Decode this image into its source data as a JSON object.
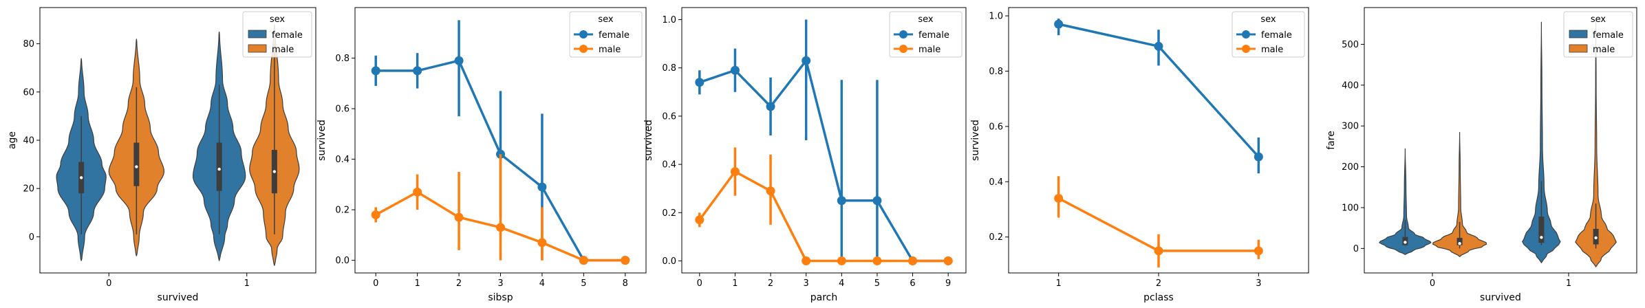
{
  "colors": {
    "female": "#1f77b4",
    "male": "#ff7f0e",
    "violin_female": "#3274a1",
    "violin_male": "#e1812c"
  },
  "chart_data": [
    {
      "type": "violin",
      "xlabel": "survived",
      "ylabel": "age",
      "categories": [
        "0",
        "1"
      ],
      "ylim": [
        -15,
        95
      ],
      "yticks": [
        0,
        20,
        40,
        60,
        80
      ],
      "legend": {
        "title": "sex",
        "placement": "top-right",
        "entries": [
          "female",
          "male"
        ]
      },
      "series": [
        {
          "name": "female",
          "violins": [
            {
              "lo": -10,
              "hi": 74,
              "q1": 18,
              "median": 24.5,
              "q3": 31,
              "wlo": 1,
              "whi": 50,
              "density": [
                [
                  -10,
                  0.02
                ],
                [
                  0,
                  0.12
                ],
                [
                  10,
                  0.45
                ],
                [
                  20,
                  0.85
                ],
                [
                  25,
                  0.9
                ],
                [
                  30,
                  0.75
                ],
                [
                  40,
                  0.45
                ],
                [
                  50,
                  0.25
                ],
                [
                  60,
                  0.1
                ],
                [
                  74,
                  0.01
                ]
              ]
            },
            {
              "lo": -10,
              "hi": 85,
              "q1": 19,
              "median": 28,
              "q3": 39,
              "wlo": 1,
              "whi": 63,
              "density": [
                [
                  -10,
                  0.02
                ],
                [
                  0,
                  0.2
                ],
                [
                  5,
                  0.3
                ],
                [
                  15,
                  0.55
                ],
                [
                  25,
                  0.95
                ],
                [
                  35,
                  0.8
                ],
                [
                  45,
                  0.5
                ],
                [
                  55,
                  0.3
                ],
                [
                  65,
                  0.12
                ],
                [
                  85,
                  0.01
                ]
              ]
            }
          ]
        },
        {
          "name": "male",
          "violins": [
            {
              "lo": -8,
              "hi": 82,
              "q1": 21,
              "median": 29,
              "q3": 39,
              "wlo": 1,
              "whi": 62,
              "density": [
                [
                  -8,
                  0.02
                ],
                [
                  0,
                  0.1
                ],
                [
                  10,
                  0.25
                ],
                [
                  20,
                  0.75
                ],
                [
                  27,
                  1.0
                ],
                [
                  35,
                  0.8
                ],
                [
                  45,
                  0.5
                ],
                [
                  55,
                  0.3
                ],
                [
                  65,
                  0.12
                ],
                [
                  82,
                  0.01
                ]
              ]
            },
            {
              "lo": -12,
              "hi": 88,
              "q1": 18,
              "median": 27,
              "q3": 36,
              "wlo": 1,
              "whi": 80,
              "density": [
                [
                  -12,
                  0.02
                ],
                [
                  -5,
                  0.1
                ],
                [
                  0,
                  0.3
                ],
                [
                  10,
                  0.4
                ],
                [
                  20,
                  0.7
                ],
                [
                  28,
                  0.9
                ],
                [
                  35,
                  0.8
                ],
                [
                  45,
                  0.5
                ],
                [
                  55,
                  0.3
                ],
                [
                  65,
                  0.15
                ],
                [
                  88,
                  0.01
                ]
              ]
            }
          ]
        }
      ]
    },
    {
      "type": "line",
      "xlabel": "sibsp",
      "ylabel": "survived",
      "categories": [
        "0",
        "1",
        "2",
        "3",
        "4",
        "5",
        "8"
      ],
      "ylim": [
        -0.05,
        1.0
      ],
      "yticks": [
        0.0,
        0.2,
        0.4,
        0.6,
        0.8
      ],
      "ytick_labels": [
        "0.0",
        "0.2",
        "0.4",
        "0.6",
        "0.8"
      ],
      "legend": {
        "title": "sex",
        "placement": "top-right",
        "entries": [
          "female",
          "male"
        ]
      },
      "series": [
        {
          "name": "female",
          "values": [
            0.75,
            0.75,
            0.79,
            0.42,
            0.29,
            0.0,
            0.0
          ],
          "ci": [
            [
              0.69,
              0.81
            ],
            [
              0.68,
              0.82
            ],
            [
              0.57,
              0.95
            ],
            [
              0.17,
              0.67
            ],
            [
              0.0,
              0.58
            ],
            [
              0,
              0
            ],
            [
              0,
              0
            ]
          ]
        },
        {
          "name": "male",
          "values": [
            0.18,
            0.27,
            0.17,
            0.13,
            0.07,
            0.0,
            0.0
          ],
          "ci": [
            [
              0.15,
              0.21
            ],
            [
              0.2,
              0.34
            ],
            [
              0.04,
              0.35
            ],
            [
              0.0,
              0.42
            ],
            [
              0.0,
              0.21
            ],
            [
              0,
              0
            ],
            [
              0,
              0
            ]
          ]
        }
      ]
    },
    {
      "type": "line",
      "xlabel": "parch",
      "ylabel": "survived",
      "categories": [
        "0",
        "1",
        "2",
        "3",
        "4",
        "5",
        "6",
        "9"
      ],
      "ylim": [
        -0.05,
        1.05
      ],
      "yticks": [
        0.0,
        0.2,
        0.4,
        0.6,
        0.8,
        1.0
      ],
      "ytick_labels": [
        "0.0",
        "0.2",
        "0.4",
        "0.6",
        "0.8",
        "1.0"
      ],
      "legend": {
        "title": "sex",
        "placement": "top-right",
        "entries": [
          "female",
          "male"
        ]
      },
      "series": [
        {
          "name": "female",
          "values": [
            0.74,
            0.79,
            0.64,
            0.83,
            0.25,
            0.25,
            0.0,
            0.0
          ],
          "ci": [
            [
              0.69,
              0.79
            ],
            [
              0.7,
              0.88
            ],
            [
              0.52,
              0.76
            ],
            [
              0.5,
              1.0
            ],
            [
              0.0,
              0.75
            ],
            [
              0.0,
              0.75
            ],
            [
              0,
              0
            ],
            [
              0,
              0
            ]
          ]
        },
        {
          "name": "male",
          "values": [
            0.17,
            0.37,
            0.29,
            0.0,
            0.0,
            0.0,
            0.0,
            0.0
          ],
          "ci": [
            [
              0.14,
              0.2
            ],
            [
              0.27,
              0.47
            ],
            [
              0.15,
              0.44
            ],
            [
              0,
              0
            ],
            [
              0,
              0
            ],
            [
              0,
              0
            ],
            [
              0,
              0
            ],
            [
              0,
              0
            ]
          ]
        }
      ]
    },
    {
      "type": "line",
      "xlabel": "pclass",
      "ylabel": "survived",
      "categories": [
        "1",
        "2",
        "3"
      ],
      "ylim": [
        0.07,
        1.03
      ],
      "yticks": [
        0.2,
        0.4,
        0.6,
        0.8,
        1.0
      ],
      "ytick_labels": [
        "0.2",
        "0.4",
        "0.6",
        "0.8",
        "1.0"
      ],
      "legend": {
        "title": "sex",
        "placement": "top-right",
        "entries": [
          "female",
          "male"
        ]
      },
      "series": [
        {
          "name": "female",
          "values": [
            0.97,
            0.89,
            0.49
          ],
          "ci": [
            [
              0.93,
              0.99
            ],
            [
              0.82,
              0.95
            ],
            [
              0.43,
              0.56
            ]
          ]
        },
        {
          "name": "male",
          "values": [
            0.34,
            0.15,
            0.15
          ],
          "ci": [
            [
              0.27,
              0.42
            ],
            [
              0.09,
              0.21
            ],
            [
              0.12,
              0.19
            ]
          ]
        }
      ]
    },
    {
      "type": "violin",
      "xlabel": "survived",
      "ylabel": "fare",
      "categories": [
        "0",
        "1"
      ],
      "ylim": [
        -60,
        590
      ],
      "yticks": [
        0,
        100,
        200,
        300,
        400,
        500
      ],
      "legend": {
        "title": "sex",
        "placement": "top-right",
        "entries": [
          "female",
          "male"
        ]
      },
      "series": [
        {
          "name": "female",
          "violins": [
            {
              "lo": -15,
              "hi": 245,
              "q1": 8,
              "median": 15,
              "q3": 28,
              "wlo": 7,
              "whi": 70,
              "density": [
                [
                  -15,
                  0.02
                ],
                [
                  -5,
                  0.3
                ],
                [
                  5,
                  0.7
                ],
                [
                  15,
                  0.95
                ],
                [
                  25,
                  0.7
                ],
                [
                  35,
                  0.35
                ],
                [
                  50,
                  0.12
                ],
                [
                  80,
                  0.05
                ],
                [
                  150,
                  0.03
                ],
                [
                  245,
                  0.0
                ]
              ]
            },
            {
              "lo": -35,
              "hi": 555,
              "q1": 14,
              "median": 27,
              "q3": 78,
              "wlo": 8,
              "whi": 165,
              "density": [
                [
                  -35,
                  0.02
                ],
                [
                  -15,
                  0.2
                ],
                [
                  0,
                  0.5
                ],
                [
                  15,
                  0.7
                ],
                [
                  30,
                  0.6
                ],
                [
                  60,
                  0.35
                ],
                [
                  90,
                  0.22
                ],
                [
                  150,
                  0.1
                ],
                [
                  250,
                  0.04
                ],
                [
                  400,
                  0.02
                ],
                [
                  555,
                  0.0
                ]
              ]
            }
          ]
        },
        {
          "name": "male",
          "values_note": "",
          "violins": [
            {
              "lo": -20,
              "hi": 285,
              "q1": 7.9,
              "median": 12,
              "q3": 26,
              "wlo": 0,
              "whi": 65,
              "density": [
                [
                  -20,
                  0.02
                ],
                [
                  -5,
                  0.35
                ],
                [
                  5,
                  0.85
                ],
                [
                  12,
                  1.0
                ],
                [
                  25,
                  0.65
                ],
                [
                  40,
                  0.25
                ],
                [
                  60,
                  0.1
                ],
                [
                  100,
                  0.04
                ],
                [
                  200,
                  0.02
                ],
                [
                  285,
                  0.0
                ]
              ]
            },
            {
              "lo": -45,
              "hi": 560,
              "q1": 10,
              "median": 26,
              "q3": 48,
              "wlo": 0,
              "whi": 110,
              "density": [
                [
                  -45,
                  0.02
                ],
                [
                  -25,
                  0.2
                ],
                [
                  0,
                  0.55
                ],
                [
                  15,
                  0.75
                ],
                [
                  30,
                  0.65
                ],
                [
                  50,
                  0.4
                ],
                [
                  80,
                  0.2
                ],
                [
                  130,
                  0.08
                ],
                [
                  250,
                  0.03
                ],
                [
                  400,
                  0.01
                ],
                [
                  560,
                  0.0
                ]
              ]
            }
          ]
        }
      ]
    }
  ]
}
